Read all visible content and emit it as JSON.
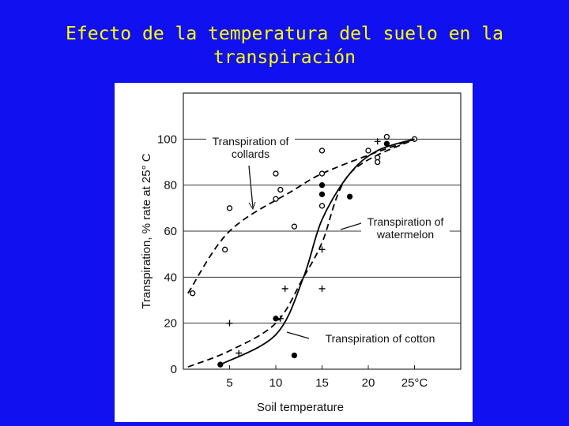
{
  "chart_data": {
    "type": "line",
    "title": "Efecto de la temperatura del suelo en la transpiración",
    "x_label": "Soil temperature",
    "y_label": "Transpiration, % rate at 25° C",
    "xlim": [
      0,
      30
    ],
    "ylim": [
      0,
      120
    ],
    "xticks": [
      5,
      10,
      15,
      20,
      {
        "value": 25,
        "label": "25°C"
      }
    ],
    "yticks": [
      0,
      20,
      40,
      60,
      80,
      100
    ],
    "grid": true,
    "series": [
      {
        "name": "Transpiration of collards",
        "color": "#000000",
        "dash": true,
        "marker": "open-circle",
        "x": [
          0.5,
          5,
          12,
          15,
          20,
          25
        ],
        "values": [
          33,
          60,
          78,
          85,
          93,
          100
        ],
        "points_x": [
          1,
          4.5,
          5,
          10,
          10,
          10.5,
          12,
          15,
          15,
          15,
          20,
          21,
          21,
          22,
          25
        ],
        "points_y": [
          33,
          52,
          70,
          85,
          74,
          78,
          62,
          95,
          85,
          71,
          95,
          92,
          90,
          101,
          100
        ]
      },
      {
        "name": "Transpiration of watermelon",
        "color": "#000000",
        "dash": false,
        "marker": "dot",
        "x": [
          4,
          10,
          13,
          15,
          18,
          21,
          25
        ],
        "values": [
          2,
          15,
          40,
          65,
          85,
          95,
          100
        ],
        "points_x": [
          4,
          10,
          12,
          15,
          15,
          18,
          22
        ],
        "points_y": [
          2,
          22,
          6,
          80,
          76,
          75,
          98
        ]
      },
      {
        "name": "Transpiration of cotton",
        "color": "#000000",
        "dash": true,
        "marker": "plus",
        "x": [
          0.5,
          5,
          10,
          13,
          15,
          18,
          25
        ],
        "values": [
          1,
          8,
          20,
          40,
          55,
          85,
          100
        ],
        "points_x": [
          5,
          6,
          10.5,
          11,
          15,
          15,
          21
        ],
        "points_y": [
          20,
          7,
          22,
          35,
          52,
          35,
          99
        ]
      }
    ]
  }
}
